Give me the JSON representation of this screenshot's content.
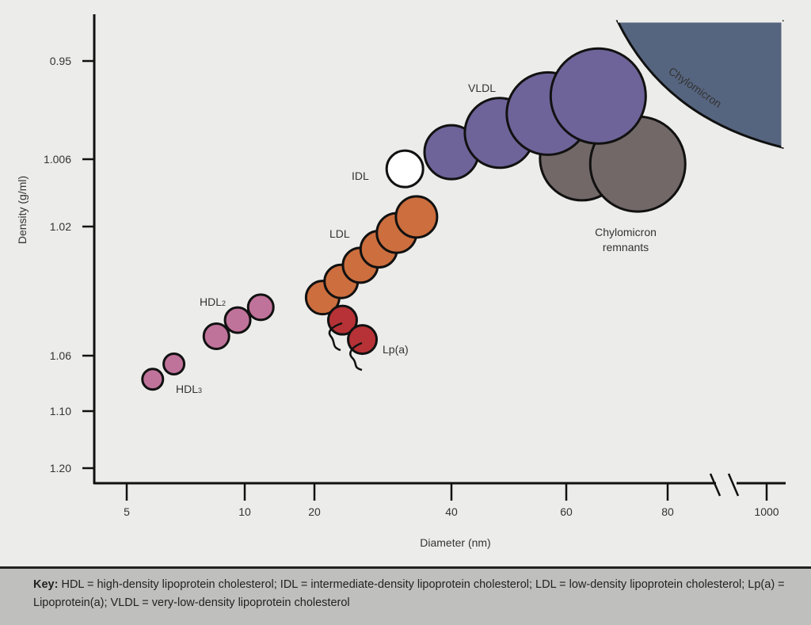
{
  "chart_data": {
    "type": "scatter",
    "xlabel": "Diameter (nm)",
    "ylabel": "Density (g/ml)",
    "x_ticks": [
      "5",
      "10",
      "20",
      "40",
      "60",
      "80",
      "1000"
    ],
    "y_ticks": [
      "0.95",
      "1.006",
      "1.02",
      "1.06",
      "1.10",
      "1.20"
    ],
    "x_axis_break": "between 80 and 1000",
    "grid": false,
    "colors": {
      "HDL": "#c0739a",
      "LDL": "#cc6e3e",
      "Lp(a)": "#b73236",
      "IDL": "#ffffff",
      "VLDL": "#6e6499",
      "Chylomicron remnants": "#726867",
      "Chylomicron": "#56657f"
    },
    "series": [
      {
        "group": "HDL",
        "points": [
          {
            "x": 6.1,
            "y": 1.077
          },
          {
            "x": 7.0,
            "y": 1.066
          }
        ]
      },
      {
        "group": "HDL",
        "points": [
          {
            "x": 8.8,
            "y": 1.054
          },
          {
            "x": 9.7,
            "y": 1.049
          },
          {
            "x": 12.3,
            "y": 1.045
          }
        ]
      },
      {
        "group": "LDL",
        "points": [
          {
            "x": 21.2,
            "y": 1.042
          },
          {
            "x": 23.9,
            "y": 1.037
          },
          {
            "x": 26.7,
            "y": 1.032
          },
          {
            "x": 29.4,
            "y": 1.027
          },
          {
            "x": 32.0,
            "y": 1.022
          },
          {
            "x": 34.9,
            "y": 1.018
          }
        ]
      },
      {
        "group": "Lp(a)",
        "points": [
          {
            "x": 24.1,
            "y": 1.049
          },
          {
            "x": 27.0,
            "y": 1.055
          }
        ]
      },
      {
        "group": "IDL",
        "points": [
          {
            "x": 33.2,
            "y": 1.008
          }
        ]
      },
      {
        "group": "Chylomicron remnants",
        "points": [
          {
            "x": 63.1,
            "y": 1.0055
          },
          {
            "x": 74.1,
            "y": 1.007
          }
        ]
      },
      {
        "group": "VLDL",
        "points": [
          {
            "x": 40,
            "y": 1.002
          },
          {
            "x": 48.4,
            "y": 0.991
          },
          {
            "x": 56.8,
            "y": 0.98
          },
          {
            "x": 66.3,
            "y": 0.97
          }
        ]
      }
    ],
    "annotations": {
      "hdl2": "HDL",
      "hdl2_sub": "2",
      "hdl3": "HDL",
      "hdl3_sub": "3",
      "ldl": "LDL",
      "lpa": "Lp(a)",
      "idl": "IDL",
      "vldl": "VLDL",
      "chylomicron": "Chylomicron",
      "remnants_line1": "Chylomicron",
      "remnants_line2": "remnants"
    }
  },
  "key": {
    "label": "Key:",
    "text": "HDL = high-density lipoprotein cholesterol; IDL = intermediate-density lipoprotein cholesterol; LDL = low-density lipoprotein cholesterol; Lp(a) = Lipoprotein(a); VLDL = very-low-density lipoprotein cholesterol"
  }
}
